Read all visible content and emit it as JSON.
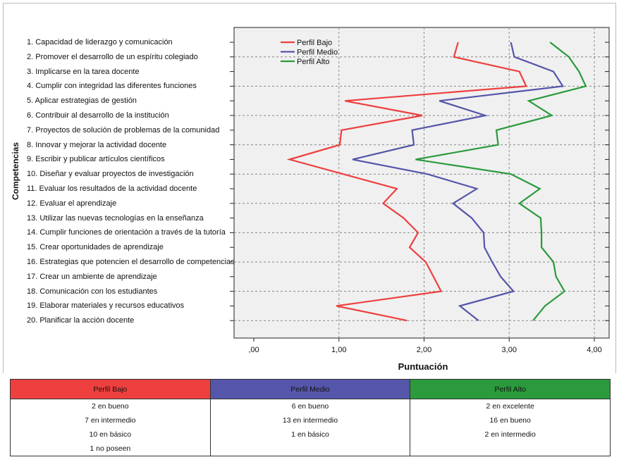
{
  "chart_data": {
    "type": "line",
    "orientation": "horizontal",
    "xlabel": "Puntuación",
    "ylabel": "Competencias",
    "xlim": [
      0,
      4.2
    ],
    "xticks": [
      ",00",
      "1,00",
      "2,00",
      "3,00",
      "4,00"
    ],
    "grid": "dashed",
    "legend_position": "top-left",
    "categories": [
      "1. Capacidad de liderazgo y comunicación",
      "2. Promover el desarrollo de un espíritu colegiado",
      "3. Implicarse en la tarea docente",
      "4. Cumplir con integridad las diferentes funciones",
      "5. Aplicar estrategias de gestión",
      "6. Contribuir al desarrollo de la institución",
      "7. Proyectos de solución de problemas de la comunidad",
      "8. Innovar y mejorar la actividad docente",
      "9. Escribir y publicar artículos científicos",
      "10. Diseñar y evaluar proyectos de investigación",
      "11. Evaluar los resultados de la actividad docente",
      "12. Evaluar el aprendizaje",
      "13. Utilizar las nuevas tecnologías en la enseñanza",
      "14. Cumplir funciones de orientación a través de la tutoría",
      "15. Crear oportunidades de aprendizaje",
      "16. Estrategias que potencien el desarrollo de competencias",
      "17. Crear un ambiente de aprendizaje",
      "18. Comunicación con los estudiantes",
      "19. Elaborar materiales y recursos educativos",
      "20. Planificar la acción docente"
    ],
    "series": [
      {
        "name": "Perfil Bajo",
        "color": "#ee3f3f",
        "values": [
          2.4,
          2.35,
          3.12,
          3.2,
          1.07,
          1.98,
          1.03,
          1.01,
          0.42,
          1.05,
          1.68,
          1.52,
          1.76,
          1.93,
          1.83,
          2.02,
          2.11,
          2.2,
          0.97,
          1.8
        ]
      },
      {
        "name": "Perfil Medio",
        "color": "#5555aa",
        "values": [
          3.02,
          3.06,
          3.52,
          3.63,
          2.18,
          2.72,
          1.86,
          1.88,
          1.16,
          2.04,
          2.62,
          2.34,
          2.56,
          2.7,
          2.71,
          2.8,
          2.9,
          3.05,
          2.42,
          2.64
        ]
      },
      {
        "name": "Perfil Alto",
        "color": "#2a9a3c",
        "values": [
          3.48,
          3.7,
          3.82,
          3.9,
          3.23,
          3.5,
          2.85,
          2.87,
          1.9,
          3.02,
          3.36,
          3.12,
          3.37,
          3.38,
          3.38,
          3.52,
          3.55,
          3.65,
          3.42,
          3.28
        ]
      }
    ]
  },
  "table": {
    "headers": [
      {
        "label": "Perfil Bajo",
        "color": "#ee3f3f"
      },
      {
        "label": "Perfil Medio",
        "color": "#5555aa"
      },
      {
        "label": "Perfil Alto",
        "color": "#2a9a3c"
      }
    ],
    "rows": [
      [
        "2 en bueno",
        "6 en bueno",
        "2 en excelente"
      ],
      [
        "7 en intermedio",
        "13 en intermedio",
        "16 en bueno"
      ],
      [
        "10 en básico",
        "1 en básico",
        "2 en intermedio"
      ],
      [
        "1 no poseen",
        "",
        ""
      ]
    ]
  }
}
